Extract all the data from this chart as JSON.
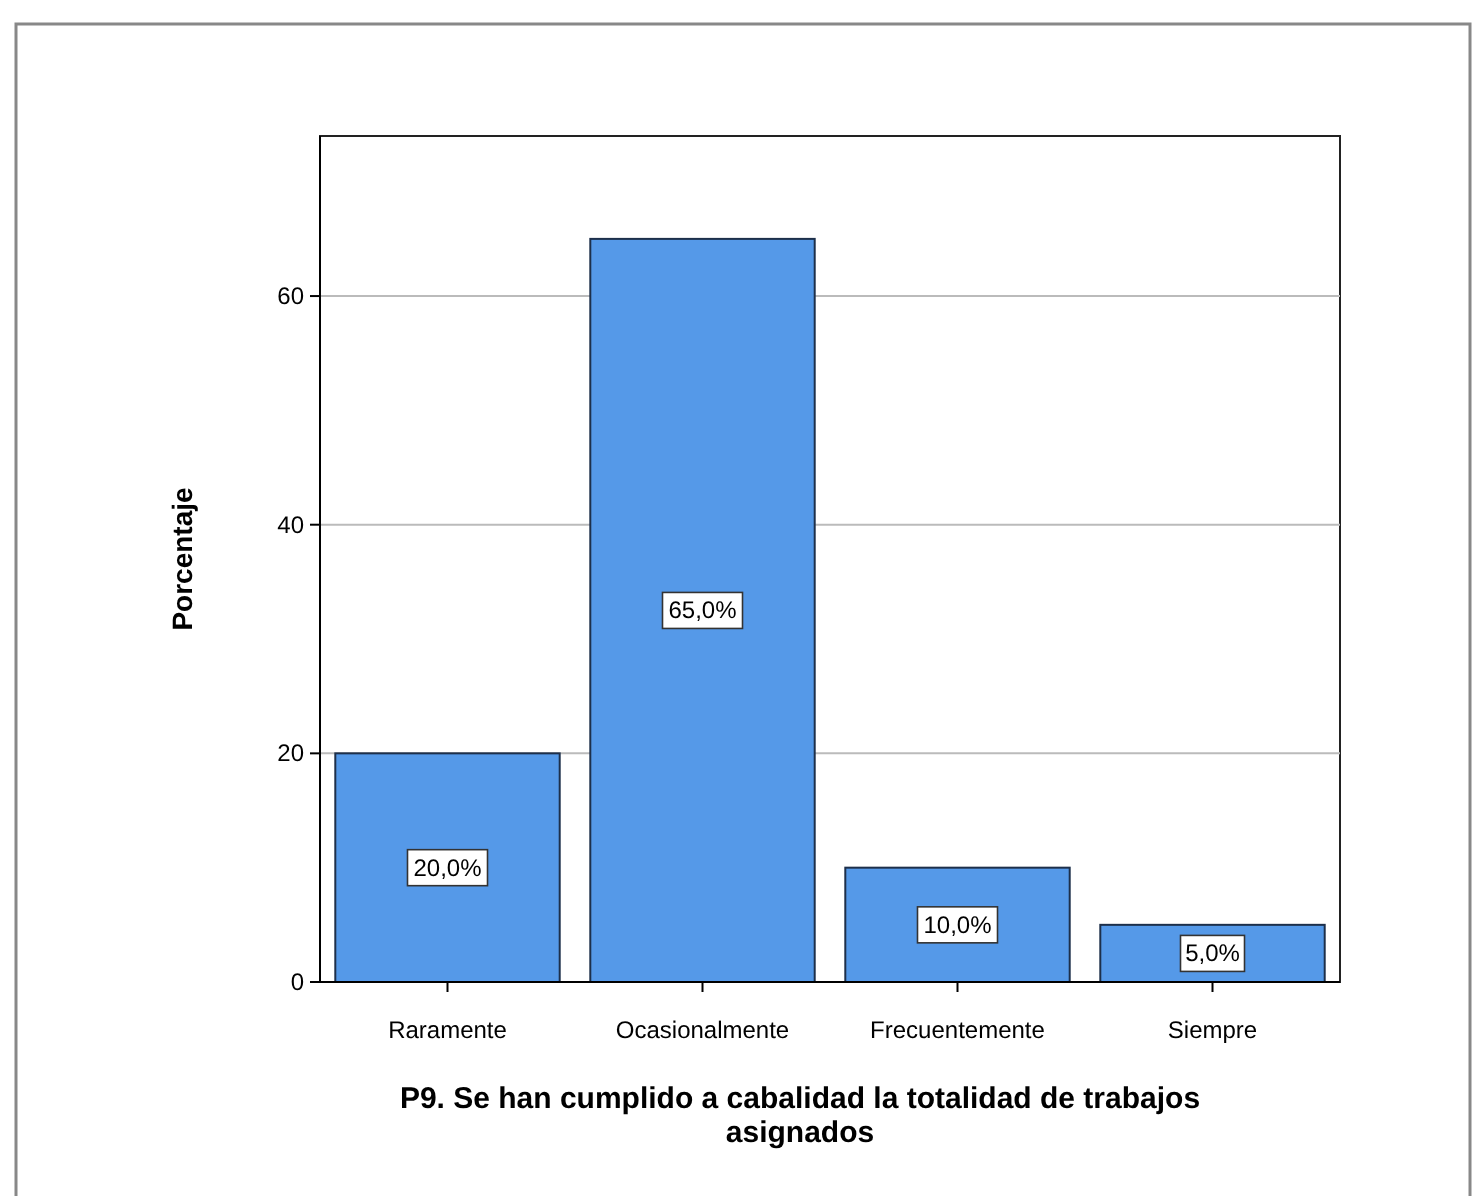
{
  "chart_data": {
    "type": "bar",
    "xlabel": "P9. Se han cumplido a cabalidad la totalidad de trabajos asignados",
    "ylabel": "Porcentaje",
    "categories": [
      "Raramente",
      "Ocasionalmente",
      "Frecuentemente",
      "Siempre"
    ],
    "values": [
      20,
      65,
      10,
      5
    ],
    "color": "#5599e8",
    "value_labels": [
      "20,0%",
      "65,0%",
      "10,0%",
      "5,0%"
    ],
    "ylim": [
      0,
      74
    ],
    "yticks": [
      0,
      20,
      40,
      60
    ],
    "grid": "y"
  }
}
